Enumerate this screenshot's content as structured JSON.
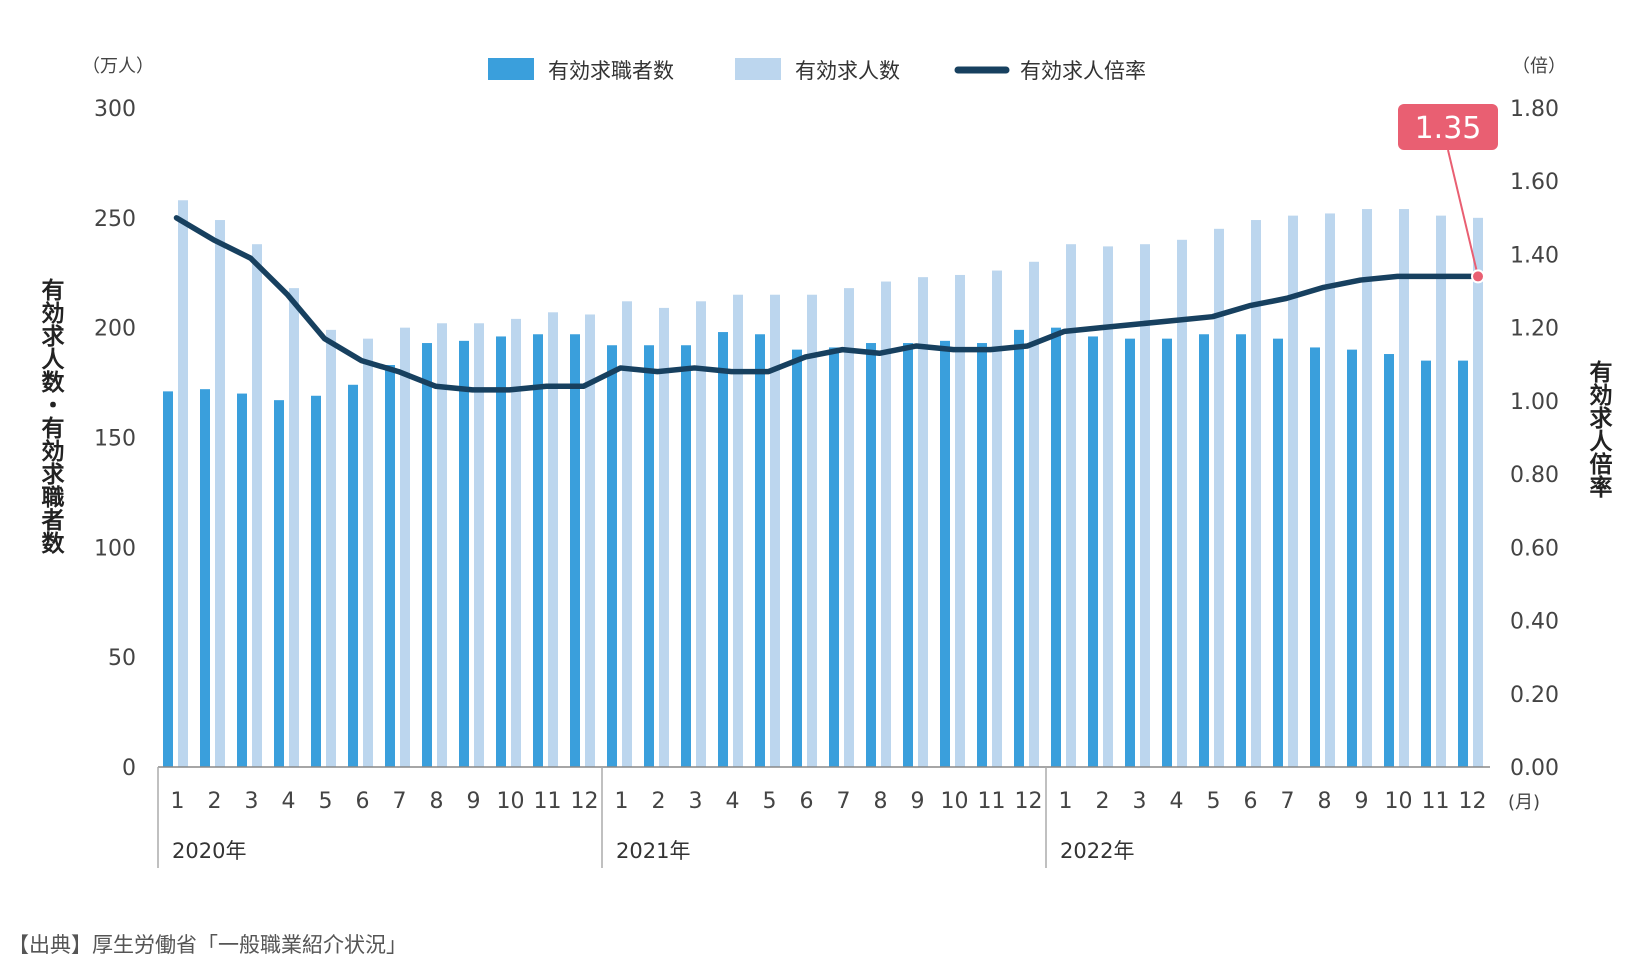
{
  "chart_data": {
    "type": "bar",
    "title": "",
    "y_left_unit": "（万人）",
    "y_right_unit": "（倍）",
    "ylabel_left": "有効求人数・有効求職者数",
    "ylabel_right": "有効求人倍率",
    "x_unit": "(月)",
    "ylim_left": [
      0,
      300
    ],
    "ylim_right": [
      0,
      1.8
    ],
    "left_ticks": [
      "0",
      "50",
      "100",
      "150",
      "200",
      "250",
      "300"
    ],
    "right_ticks": [
      "0.00",
      "0.20",
      "0.40",
      "0.60",
      "0.80",
      "1.00",
      "1.20",
      "1.40",
      "1.60",
      "1.80"
    ],
    "years": [
      "2020年",
      "2021年",
      "2022年"
    ],
    "months": [
      "1",
      "2",
      "3",
      "4",
      "5",
      "6",
      "7",
      "8",
      "9",
      "10",
      "11",
      "12",
      "1",
      "2",
      "3",
      "4",
      "5",
      "6",
      "7",
      "8",
      "9",
      "10",
      "11",
      "12",
      "1",
      "2",
      "3",
      "4",
      "5",
      "6",
      "7",
      "8",
      "9",
      "10",
      "11",
      "12"
    ],
    "legend_position": "top-center",
    "grid": false,
    "series": [
      {
        "name": "有効求職者数",
        "type": "bar",
        "color": "#3a9fdc",
        "values": [
          171,
          172,
          170,
          167,
          169,
          174,
          183,
          193,
          194,
          196,
          197,
          197,
          192,
          192,
          192,
          198,
          197,
          190,
          191,
          193,
          193,
          194,
          193,
          199,
          200,
          196,
          195,
          195,
          197,
          197,
          195,
          191,
          190,
          188,
          185,
          185
        ]
      },
      {
        "name": "有効求人数",
        "type": "bar",
        "color": "#bcd6ee",
        "values": [
          258,
          249,
          238,
          218,
          199,
          195,
          200,
          202,
          202,
          204,
          207,
          206,
          212,
          209,
          212,
          215,
          215,
          215,
          218,
          221,
          223,
          224,
          226,
          230,
          238,
          237,
          238,
          240,
          245,
          249,
          251,
          252,
          254,
          254,
          251,
          250
        ]
      },
      {
        "name": "有効求人倍率",
        "type": "line",
        "color": "#17405f",
        "values": [
          1.5,
          1.44,
          1.39,
          1.29,
          1.17,
          1.11,
          1.08,
          1.04,
          1.03,
          1.03,
          1.04,
          1.04,
          1.09,
          1.08,
          1.09,
          1.08,
          1.08,
          1.12,
          1.14,
          1.13,
          1.15,
          1.14,
          1.14,
          1.15,
          1.19,
          1.2,
          1.21,
          1.22,
          1.23,
          1.26,
          1.28,
          1.31,
          1.33,
          1.34,
          1.34,
          1.34
        ]
      }
    ],
    "annotation": {
      "label": "1.35",
      "color": "#e95f72"
    },
    "source": "【出典】厚生労働省「一般職業紹介状況」"
  }
}
